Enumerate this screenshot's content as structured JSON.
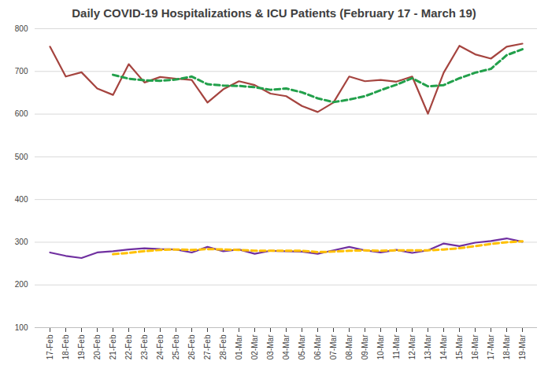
{
  "chart_data": {
    "type": "line",
    "title": "Daily COVID-19 Hospitalizations & ICU Patients (February 17 - March 19)",
    "categories": [
      "17-Feb",
      "18-Feb",
      "19-Feb",
      "20-Feb",
      "21-Feb",
      "22-Feb",
      "23-Feb",
      "24-Feb",
      "25-Feb",
      "26-Feb",
      "27-Feb",
      "28-Feb",
      "01-Mar",
      "02-Mar",
      "03-Mar",
      "04-Mar",
      "05-Mar",
      "06-Mar",
      "07-Mar",
      "08-Mar",
      "09-Mar",
      "10-Mar",
      "11-Mar",
      "12-Mar",
      "13-Mar",
      "14-Mar",
      "15-Mar",
      "16-Mar",
      "17-Mar",
      "18-Mar",
      "19-Mar"
    ],
    "series": [
      {
        "color": "#a5443f",
        "line_style": "solid",
        "values": [
          758,
          688,
          698,
          660,
          645,
          717,
          674,
          687,
          683,
          680,
          627,
          658,
          677,
          668,
          648,
          642,
          619,
          605,
          627,
          688,
          677,
          680,
          676,
          688,
          601,
          697,
          760,
          740,
          730,
          758,
          765
        ]
      },
      {
        "color": "#22a04b",
        "line_style": "dashed",
        "values": [
          null,
          null,
          null,
          null,
          692,
          683,
          679,
          678,
          681,
          688,
          670,
          667,
          666,
          663,
          657,
          660,
          651,
          637,
          628,
          634,
          642,
          656,
          669,
          684,
          665,
          668,
          684,
          697,
          706,
          738,
          752
        ]
      },
      {
        "color": "#7030a0",
        "line_style": "solid",
        "values": [
          276,
          268,
          263,
          276,
          279,
          283,
          286,
          284,
          283,
          276,
          289,
          279,
          283,
          273,
          280,
          279,
          278,
          273,
          281,
          289,
          281,
          276,
          282,
          275,
          281,
          297,
          291,
          299,
          303,
          309,
          301
        ]
      },
      {
        "color": "#ffc000",
        "line_style": "dashed",
        "values": [
          null,
          null,
          null,
          null,
          272,
          275,
          279,
          282,
          283,
          282,
          284,
          283,
          282,
          280,
          280,
          280,
          280,
          277,
          278,
          280,
          281,
          280,
          281,
          281,
          281,
          283,
          286,
          291,
          296,
          300,
          302
        ]
      }
    ],
    "ylim": [
      100,
      800
    ],
    "yticks": [
      100,
      200,
      300,
      400,
      500,
      600,
      700,
      800
    ],
    "grid": true
  }
}
